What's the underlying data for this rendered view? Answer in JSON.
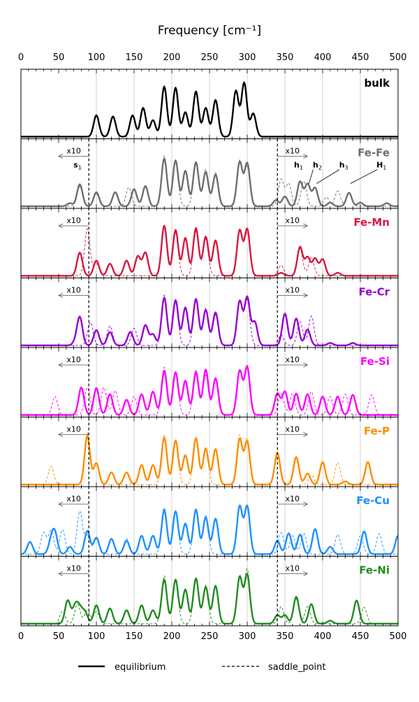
{
  "chart_data": {
    "type": "line",
    "title": "Frequency [cm⁻¹]",
    "xlabel": "Frequency [cm⁻¹]",
    "ylabel": "",
    "xlim": [
      0,
      500
    ],
    "xticks": [
      "0",
      "50",
      "100",
      "150",
      "200",
      "250",
      "300",
      "350",
      "400",
      "450",
      "500"
    ],
    "vlines": [
      90,
      340
    ],
    "x10_label": "x10",
    "legend": [
      {
        "label": "equilibrium",
        "style": "solid"
      },
      {
        "label": "saddle_point",
        "style": "dashed"
      }
    ],
    "panels": [
      {
        "name": "bulk",
        "color": "#000000",
        "equilibrium_peaks": [
          [
            100,
            0.35
          ],
          [
            122,
            0.33
          ],
          [
            148,
            0.35
          ],
          [
            162,
            0.47
          ],
          [
            175,
            0.27
          ],
          [
            190,
            0.82
          ],
          [
            205,
            0.8
          ],
          [
            218,
            0.4
          ],
          [
            232,
            0.74
          ],
          [
            245,
            0.47
          ],
          [
            258,
            0.6
          ],
          [
            285,
            0.75
          ],
          [
            296,
            0.88
          ],
          [
            308,
            0.38
          ]
        ],
        "saddle_peaks": []
      },
      {
        "name": "Fe-Fe",
        "color": "#6e6e6e",
        "equilibrium_peaks": [
          [
            65,
            0.05
          ],
          [
            78,
            0.36
          ],
          [
            100,
            0.23
          ],
          [
            125,
            0.23
          ],
          [
            150,
            0.28
          ],
          [
            165,
            0.33
          ],
          [
            190,
            0.78
          ],
          [
            205,
            0.75
          ],
          [
            218,
            0.58
          ],
          [
            232,
            0.72
          ],
          [
            245,
            0.56
          ],
          [
            258,
            0.52
          ],
          [
            290,
            0.72
          ],
          [
            300,
            0.7
          ],
          [
            338,
            0.1
          ],
          [
            350,
            0.16
          ],
          [
            370,
            0.4
          ],
          [
            380,
            0.36
          ],
          [
            390,
            0.3
          ],
          [
            410,
            0.06
          ],
          [
            435,
            0.22
          ],
          [
            450,
            0.06
          ],
          [
            485,
            0.05
          ]
        ],
        "saddle_peaks": [
          [
            78,
            0.32
          ],
          [
            100,
            0.2
          ],
          [
            143,
            0.31
          ],
          [
            190,
            0.82
          ],
          [
            205,
            0.74
          ],
          [
            232,
            0.7
          ],
          [
            245,
            0.6
          ],
          [
            258,
            0.55
          ],
          [
            290,
            0.75
          ],
          [
            300,
            0.64
          ],
          [
            345,
            0.44
          ],
          [
            355,
            0.37
          ],
          [
            375,
            0.41
          ],
          [
            405,
            0.15
          ],
          [
            420,
            0.25
          ],
          [
            435,
            0.23
          ]
        ],
        "annotations": [
          {
            "text": "s",
            "sub": "1",
            "x": 75,
            "peak_x": 78
          },
          {
            "text": "h",
            "sub": "1",
            "x": 368,
            "peak_x": 370
          },
          {
            "text": "h",
            "sub": "2",
            "x": 393,
            "peak_x": 380
          },
          {
            "text": "h",
            "sub": "3",
            "x": 428,
            "peak_x": 390
          },
          {
            "text": "H",
            "sub": "1",
            "x": 478,
            "peak_x": 435
          }
        ]
      },
      {
        "name": "Fe-Mn",
        "color": "#d7193f",
        "equilibrium_peaks": [
          [
            78,
            0.38
          ],
          [
            100,
            0.25
          ],
          [
            118,
            0.2
          ],
          [
            140,
            0.25
          ],
          [
            155,
            0.32
          ],
          [
            165,
            0.38
          ],
          [
            190,
            0.82
          ],
          [
            205,
            0.75
          ],
          [
            218,
            0.62
          ],
          [
            232,
            0.78
          ],
          [
            245,
            0.64
          ],
          [
            258,
            0.58
          ],
          [
            290,
            0.74
          ],
          [
            300,
            0.76
          ],
          [
            345,
            0.05
          ],
          [
            370,
            0.47
          ],
          [
            380,
            0.3
          ],
          [
            390,
            0.28
          ],
          [
            400,
            0.27
          ],
          [
            420,
            0.05
          ]
        ],
        "saddle_peaks": [
          [
            88,
            0.77
          ],
          [
            100,
            0.2
          ],
          [
            190,
            0.8
          ],
          [
            205,
            0.7
          ],
          [
            232,
            0.72
          ],
          [
            245,
            0.6
          ],
          [
            290,
            0.75
          ],
          [
            300,
            0.7
          ],
          [
            345,
            0.17
          ],
          [
            370,
            0.44
          ],
          [
            385,
            0.3
          ]
        ]
      },
      {
        "name": "Fe-Cr",
        "color": "#9400d3",
        "equilibrium_peaks": [
          [
            72,
            0.05
          ],
          [
            78,
            0.46
          ],
          [
            100,
            0.25
          ],
          [
            118,
            0.22
          ],
          [
            145,
            0.22
          ],
          [
            165,
            0.33
          ],
          [
            175,
            0.18
          ],
          [
            190,
            0.78
          ],
          [
            205,
            0.74
          ],
          [
            218,
            0.62
          ],
          [
            232,
            0.76
          ],
          [
            245,
            0.58
          ],
          [
            258,
            0.54
          ],
          [
            290,
            0.72
          ],
          [
            300,
            0.78
          ],
          [
            310,
            0.38
          ],
          [
            350,
            0.52
          ],
          [
            365,
            0.44
          ],
          [
            380,
            0.26
          ],
          [
            410,
            0.04
          ],
          [
            440,
            0.04
          ]
        ],
        "saddle_peaks": [
          [
            92,
            0.38
          ],
          [
            118,
            0.32
          ],
          [
            150,
            0.28
          ],
          [
            190,
            0.82
          ],
          [
            205,
            0.7
          ],
          [
            232,
            0.73
          ],
          [
            245,
            0.6
          ],
          [
            258,
            0.5
          ],
          [
            290,
            0.7
          ],
          [
            300,
            0.74
          ],
          [
            345,
            0.17
          ],
          [
            370,
            0.39
          ],
          [
            385,
            0.48
          ]
        ]
      },
      {
        "name": "Fe-Si",
        "color": "#ff00ff",
        "equilibrium_peaks": [
          [
            80,
            0.45
          ],
          [
            100,
            0.44
          ],
          [
            118,
            0.34
          ],
          [
            140,
            0.25
          ],
          [
            160,
            0.34
          ],
          [
            175,
            0.38
          ],
          [
            190,
            0.72
          ],
          [
            205,
            0.7
          ],
          [
            218,
            0.56
          ],
          [
            232,
            0.7
          ],
          [
            245,
            0.74
          ],
          [
            258,
            0.6
          ],
          [
            290,
            0.72
          ],
          [
            300,
            0.78
          ],
          [
            340,
            0.35
          ],
          [
            350,
            0.38
          ],
          [
            365,
            0.35
          ],
          [
            380,
            0.34
          ],
          [
            400,
            0.3
          ],
          [
            420,
            0.3
          ],
          [
            440,
            0.33
          ]
        ],
        "saddle_peaks": [
          [
            45,
            0.3
          ],
          [
            88,
            0.45
          ],
          [
            110,
            0.45
          ],
          [
            125,
            0.4
          ],
          [
            150,
            0.3
          ],
          [
            190,
            0.78
          ],
          [
            205,
            0.7
          ],
          [
            232,
            0.74
          ],
          [
            245,
            0.65
          ],
          [
            258,
            0.58
          ],
          [
            290,
            0.72
          ],
          [
            300,
            0.8
          ],
          [
            345,
            0.35
          ],
          [
            360,
            0.35
          ],
          [
            385,
            0.38
          ],
          [
            410,
            0.3
          ],
          [
            430,
            0.34
          ],
          [
            465,
            0.33
          ]
        ]
      },
      {
        "name": "Fe-P",
        "color": "#ff8c00",
        "equilibrium_peaks": [
          [
            88,
            0.8
          ],
          [
            100,
            0.35
          ],
          [
            120,
            0.2
          ],
          [
            140,
            0.2
          ],
          [
            160,
            0.32
          ],
          [
            175,
            0.32
          ],
          [
            190,
            0.77
          ],
          [
            205,
            0.72
          ],
          [
            218,
            0.48
          ],
          [
            232,
            0.76
          ],
          [
            245,
            0.58
          ],
          [
            258,
            0.58
          ],
          [
            290,
            0.74
          ],
          [
            300,
            0.7
          ],
          [
            340,
            0.52
          ],
          [
            365,
            0.45
          ],
          [
            380,
            0.18
          ],
          [
            400,
            0.37
          ],
          [
            430,
            0.05
          ],
          [
            460,
            0.37
          ]
        ],
        "saddle_peaks": [
          [
            40,
            0.3
          ],
          [
            88,
            0.84
          ],
          [
            100,
            0.35
          ],
          [
            190,
            0.8
          ],
          [
            205,
            0.7
          ],
          [
            232,
            0.76
          ],
          [
            245,
            0.62
          ],
          [
            290,
            0.8
          ],
          [
            300,
            0.74
          ],
          [
            340,
            0.45
          ],
          [
            365,
            0.4
          ],
          [
            385,
            0.15
          ],
          [
            420,
            0.36
          ]
        ]
      },
      {
        "name": "Fe-Cu",
        "color": "#1e90ff",
        "equilibrium_peaks": [
          [
            12,
            0.2
          ],
          [
            40,
            0.2
          ],
          [
            45,
            0.32
          ],
          [
            65,
            0.12
          ],
          [
            88,
            0.38
          ],
          [
            100,
            0.27
          ],
          [
            120,
            0.25
          ],
          [
            140,
            0.22
          ],
          [
            160,
            0.3
          ],
          [
            175,
            0.3
          ],
          [
            190,
            0.72
          ],
          [
            205,
            0.7
          ],
          [
            218,
            0.5
          ],
          [
            232,
            0.73
          ],
          [
            245,
            0.6
          ],
          [
            258,
            0.58
          ],
          [
            290,
            0.78
          ],
          [
            300,
            0.78
          ],
          [
            340,
            0.22
          ],
          [
            355,
            0.34
          ],
          [
            370,
            0.32
          ],
          [
            390,
            0.41
          ],
          [
            410,
            0.12
          ],
          [
            455,
            0.37
          ],
          [
            500,
            0.3
          ]
        ],
        "saddle_peaks": [
          [
            30,
            0.35
          ],
          [
            40,
            0.38
          ],
          [
            55,
            0.4
          ],
          [
            78,
            0.7
          ],
          [
            88,
            0.3
          ],
          [
            100,
            0.25
          ],
          [
            140,
            0.25
          ],
          [
            190,
            0.76
          ],
          [
            205,
            0.7
          ],
          [
            232,
            0.72
          ],
          [
            245,
            0.64
          ],
          [
            290,
            0.79
          ],
          [
            300,
            0.76
          ],
          [
            345,
            0.35
          ],
          [
            360,
            0.3
          ],
          [
            375,
            0.34
          ],
          [
            420,
            0.32
          ],
          [
            450,
            0.3
          ],
          [
            475,
            0.33
          ]
        ]
      },
      {
        "name": "Fe-Ni",
        "color": "#228b22",
        "equilibrium_peaks": [
          [
            62,
            0.38
          ],
          [
            72,
            0.28
          ],
          [
            78,
            0.22
          ],
          [
            85,
            0.18
          ],
          [
            100,
            0.3
          ],
          [
            118,
            0.25
          ],
          [
            140,
            0.22
          ],
          [
            160,
            0.3
          ],
          [
            175,
            0.22
          ],
          [
            190,
            0.72
          ],
          [
            205,
            0.72
          ],
          [
            218,
            0.56
          ],
          [
            232,
            0.74
          ],
          [
            245,
            0.6
          ],
          [
            258,
            0.62
          ],
          [
            290,
            0.76
          ],
          [
            300,
            0.8
          ],
          [
            340,
            0.14
          ],
          [
            350,
            0.14
          ],
          [
            365,
            0.44
          ],
          [
            385,
            0.32
          ],
          [
            410,
            0.05
          ],
          [
            445,
            0.38
          ]
        ],
        "saddle_peaks": [
          [
            55,
            0.2
          ],
          [
            75,
            0.32
          ],
          [
            88,
            0.22
          ],
          [
            100,
            0.2
          ],
          [
            190,
            0.78
          ],
          [
            205,
            0.7
          ],
          [
            232,
            0.72
          ],
          [
            245,
            0.63
          ],
          [
            290,
            0.78
          ],
          [
            300,
            0.88
          ],
          [
            345,
            0.28
          ],
          [
            365,
            0.4
          ],
          [
            380,
            0.28
          ],
          [
            455,
            0.27
          ]
        ]
      }
    ]
  }
}
